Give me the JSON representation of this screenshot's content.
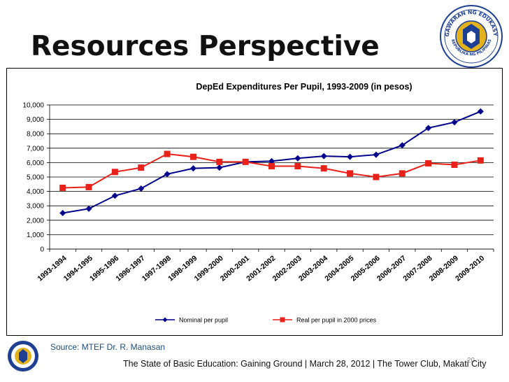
{
  "slide": {
    "title": "Resources Perspective",
    "source": "Source: MTEF Dr. R. Manasan",
    "footer": "The State of Basic Education: Gaining Ground | March 28, 2012 | The Tower Club, Makati City",
    "page_number": "20"
  },
  "seal": {
    "top_text": "KAGAWARAN NG EDUKASYON",
    "bottom_text": "REPUBLIKA NG PILIPINAS"
  },
  "colors": {
    "nominal": "#00008b",
    "real": "#e8211a",
    "seal_blue": "#1f3f93",
    "seal_gold": "#e3b31f"
  },
  "chart_data": {
    "type": "line",
    "title": "DepEd  Expenditures  Per  Pupil, 1993-2009  (in pesos)",
    "categories": [
      "1993-1994",
      "1994-1995",
      "1995-1996",
      "1996-1997",
      "1997-1998",
      "1998-1999",
      "1999-2000",
      "2000-2001",
      "2001-2002",
      "2002-2003",
      "2003-2004",
      "2004-2005",
      "2005-2006",
      "2006-2007",
      "2007-2008",
      "2008-2009",
      "2009-2010"
    ],
    "series": [
      {
        "name": "Nominal per pupil",
        "marker": "diamond",
        "values": [
          2500,
          2800,
          3700,
          4200,
          5200,
          5600,
          5650,
          6050,
          6100,
          6300,
          6450,
          6400,
          6550,
          7200,
          8400,
          8800,
          9550
        ]
      },
      {
        "name": "Real per pupil in 2000 prices",
        "marker": "square",
        "values": [
          4250,
          4300,
          5350,
          5650,
          6600,
          6400,
          6050,
          6050,
          5750,
          5750,
          5600,
          5250,
          5000,
          5250,
          5950,
          5850,
          6150
        ]
      }
    ],
    "ylim": [
      0,
      10000
    ],
    "yticks": [
      0,
      1000,
      2000,
      3000,
      4000,
      5000,
      6000,
      7000,
      8000,
      9000,
      10000
    ],
    "ytick_labels": [
      "0",
      "1,000",
      "2,000",
      "3,000",
      "4,000",
      "5,000",
      "6,000",
      "7,000",
      "8,000",
      "9,000",
      "10,000"
    ],
    "grid": true,
    "legend": "bottom-center"
  }
}
